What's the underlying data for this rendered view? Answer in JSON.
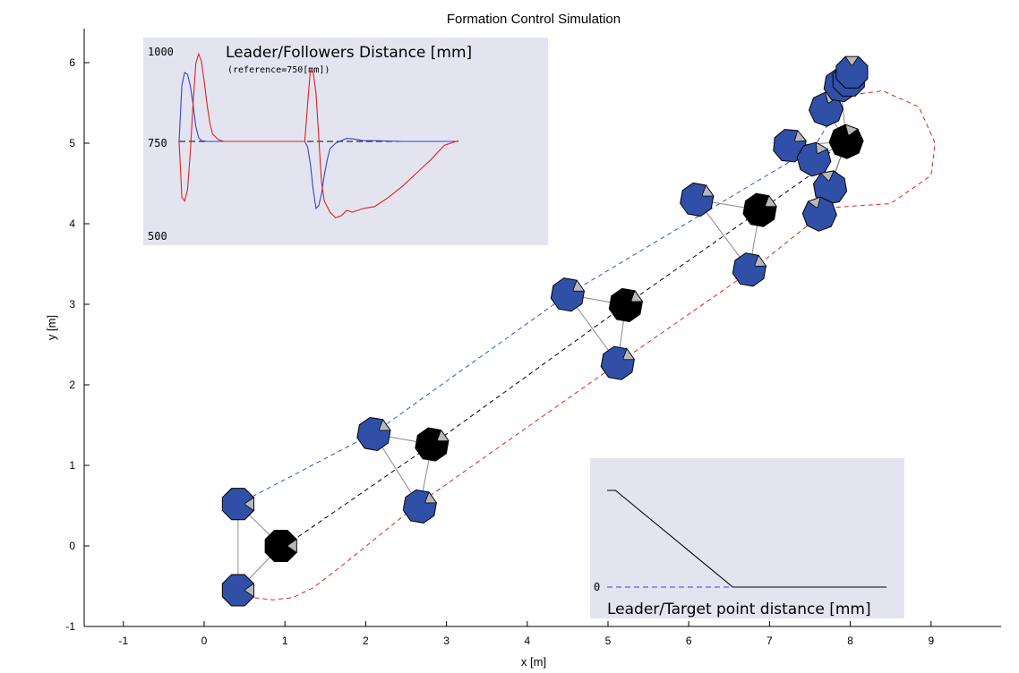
{
  "chart_data": [
    {
      "type": "line",
      "title": "Formation Control Simulation",
      "xlabel": "x [m]",
      "ylabel": "y [m]",
      "xlim": [
        -1.5,
        10
      ],
      "ylim": [
        -1,
        6.4
      ],
      "xticks": [
        -1,
        0,
        1,
        2,
        3,
        4,
        5,
        6,
        7,
        8,
        9
      ],
      "yticks": [
        -1,
        0,
        1,
        2,
        3,
        4,
        5,
        6
      ],
      "grid": false,
      "series": [
        {
          "role": "leader-trajectory",
          "color": "#000000",
          "style": "dashed",
          "x": [
            1.0,
            2.85,
            5.2,
            7.5,
            7.8
          ],
          "y": [
            0.0,
            1.28,
            2.98,
            4.6,
            4.95
          ]
        },
        {
          "role": "follower-1-trajectory",
          "color": "#3355cc",
          "style": "dashed",
          "x": [
            0.42,
            2.1,
            4.5,
            7.55,
            7.95
          ],
          "y": [
            0.52,
            1.4,
            3.12,
            4.95,
            5.6
          ]
        },
        {
          "role": "follower-2-trajectory",
          "color": "#dd2222",
          "style": "dashed",
          "x": [
            0.45,
            0.6,
            0.85,
            1.1,
            1.35,
            1.7,
            2.65,
            5.1,
            6.75,
            7.75,
            8.5,
            9.0,
            9.05,
            8.85,
            8.4,
            8.0
          ],
          "y": [
            -0.55,
            -0.64,
            -0.67,
            -0.64,
            -0.52,
            -0.25,
            0.52,
            2.25,
            3.4,
            4.2,
            4.25,
            4.6,
            5.0,
            5.45,
            5.65,
            5.6
          ]
        }
      ],
      "robots": [
        {
          "role": "leader",
          "x": 0.95,
          "y": 0.0,
          "heading": 0
        },
        {
          "role": "follower",
          "x": 0.42,
          "y": 0.52,
          "heading": 0
        },
        {
          "role": "follower",
          "x": 0.42,
          "y": -0.55,
          "heading": 0
        },
        {
          "role": "leader",
          "x": 2.82,
          "y": 1.26,
          "heading": 35
        },
        {
          "role": "follower",
          "x": 2.1,
          "y": 1.39,
          "heading": 35
        },
        {
          "role": "follower",
          "x": 2.67,
          "y": 0.49,
          "heading": 35
        },
        {
          "role": "leader",
          "x": 5.22,
          "y": 2.99,
          "heading": 35
        },
        {
          "role": "follower",
          "x": 4.5,
          "y": 3.12,
          "heading": 35
        },
        {
          "role": "follower",
          "x": 5.12,
          "y": 2.27,
          "heading": 35
        },
        {
          "role": "leader",
          "x": 6.88,
          "y": 4.17,
          "heading": 35
        },
        {
          "role": "follower",
          "x": 6.1,
          "y": 4.3,
          "heading": 35
        },
        {
          "role": "follower",
          "x": 6.75,
          "y": 3.43,
          "heading": 35
        },
        {
          "role": "leader",
          "x": 7.95,
          "y": 5.02,
          "heading": 70
        },
        {
          "role": "follower",
          "x": 7.25,
          "y": 4.97,
          "heading": 40
        },
        {
          "role": "follower",
          "x": 7.55,
          "y": 4.8,
          "heading": 60
        },
        {
          "role": "follower",
          "x": 7.7,
          "y": 5.42,
          "heading": 70
        },
        {
          "role": "follower",
          "x": 7.88,
          "y": 5.72,
          "heading": 80
        },
        {
          "role": "follower",
          "x": 7.98,
          "y": 5.78,
          "heading": 90
        },
        {
          "role": "follower",
          "x": 8.02,
          "y": 5.88,
          "heading": 90
        },
        {
          "role": "follower",
          "x": 7.75,
          "y": 4.45,
          "heading": 100
        },
        {
          "role": "follower",
          "x": 7.62,
          "y": 4.12,
          "heading": 110
        }
      ],
      "links": [
        [
          0,
          1
        ],
        [
          0,
          2
        ],
        [
          1,
          2
        ],
        [
          3,
          4
        ],
        [
          3,
          5
        ],
        [
          4,
          5
        ],
        [
          6,
          7
        ],
        [
          6,
          8
        ],
        [
          7,
          8
        ],
        [
          9,
          10
        ],
        [
          9,
          11
        ],
        [
          10,
          11
        ],
        [
          12,
          13
        ],
        [
          12,
          14
        ],
        [
          12,
          15
        ],
        [
          12,
          16
        ],
        [
          12,
          19
        ],
        [
          12,
          20
        ],
        [
          15,
          16
        ],
        [
          19,
          20
        ],
        [
          14,
          19
        ]
      ]
    },
    {
      "type": "line",
      "title": "Leader/Followers Distance [mm]",
      "subtitle": "(reference=750[mm])",
      "yticks_labels": [
        "1000",
        "750",
        "500"
      ],
      "ylim": [
        500,
        1000
      ],
      "xlim": [
        0,
        100
      ],
      "reference": 750,
      "series": [
        {
          "role": "follower-1-distance",
          "color": "#3344cc",
          "x": [
            0,
            1,
            2,
            3,
            4,
            5,
            6,
            7,
            8,
            10,
            12,
            14,
            16,
            18,
            20,
            30,
            40,
            45,
            46,
            47,
            48,
            49,
            50,
            51,
            52,
            53,
            54,
            56,
            58,
            60,
            62,
            66,
            70,
            80,
            90,
            100
          ],
          "y": [
            750,
            900,
            935,
            930,
            900,
            850,
            790,
            760,
            752,
            750,
            750,
            750,
            750,
            750,
            750,
            750,
            750,
            750,
            735,
            690,
            620,
            570,
            578,
            610,
            660,
            700,
            730,
            745,
            752,
            758,
            757,
            752,
            752,
            750,
            750,
            750
          ]
        },
        {
          "role": "follower-2-distance",
          "color": "#dd2222",
          "x": [
            0,
            1,
            2,
            3,
            4,
            5,
            6,
            7,
            8,
            9,
            10,
            11,
            12,
            14,
            16,
            18,
            20,
            30,
            40,
            45,
            46,
            47,
            48,
            49,
            50,
            51,
            52,
            54,
            56,
            58,
            60,
            62,
            64,
            66,
            70,
            75,
            80,
            85,
            90,
            95,
            100
          ],
          "y": [
            750,
            600,
            590,
            620,
            720,
            850,
            960,
            985,
            965,
            910,
            850,
            800,
            770,
            755,
            750,
            750,
            750,
            750,
            750,
            750,
            850,
            940,
            935,
            880,
            760,
            640,
            590,
            560,
            545,
            550,
            565,
            560,
            565,
            570,
            575,
            600,
            630,
            665,
            700,
            740,
            752
          ]
        }
      ]
    },
    {
      "type": "line",
      "title": "Leader/Target point distance [mm]",
      "yticks_labels": [
        "0"
      ],
      "xlim": [
        0,
        100
      ],
      "ylim": [
        0,
        1200
      ],
      "reference": 0,
      "series": [
        {
          "role": "target-distance",
          "color": "#000000",
          "x": [
            0,
            3,
            45,
            60,
            100
          ],
          "y": [
            1100,
            1100,
            0,
            0,
            0
          ]
        }
      ]
    }
  ]
}
